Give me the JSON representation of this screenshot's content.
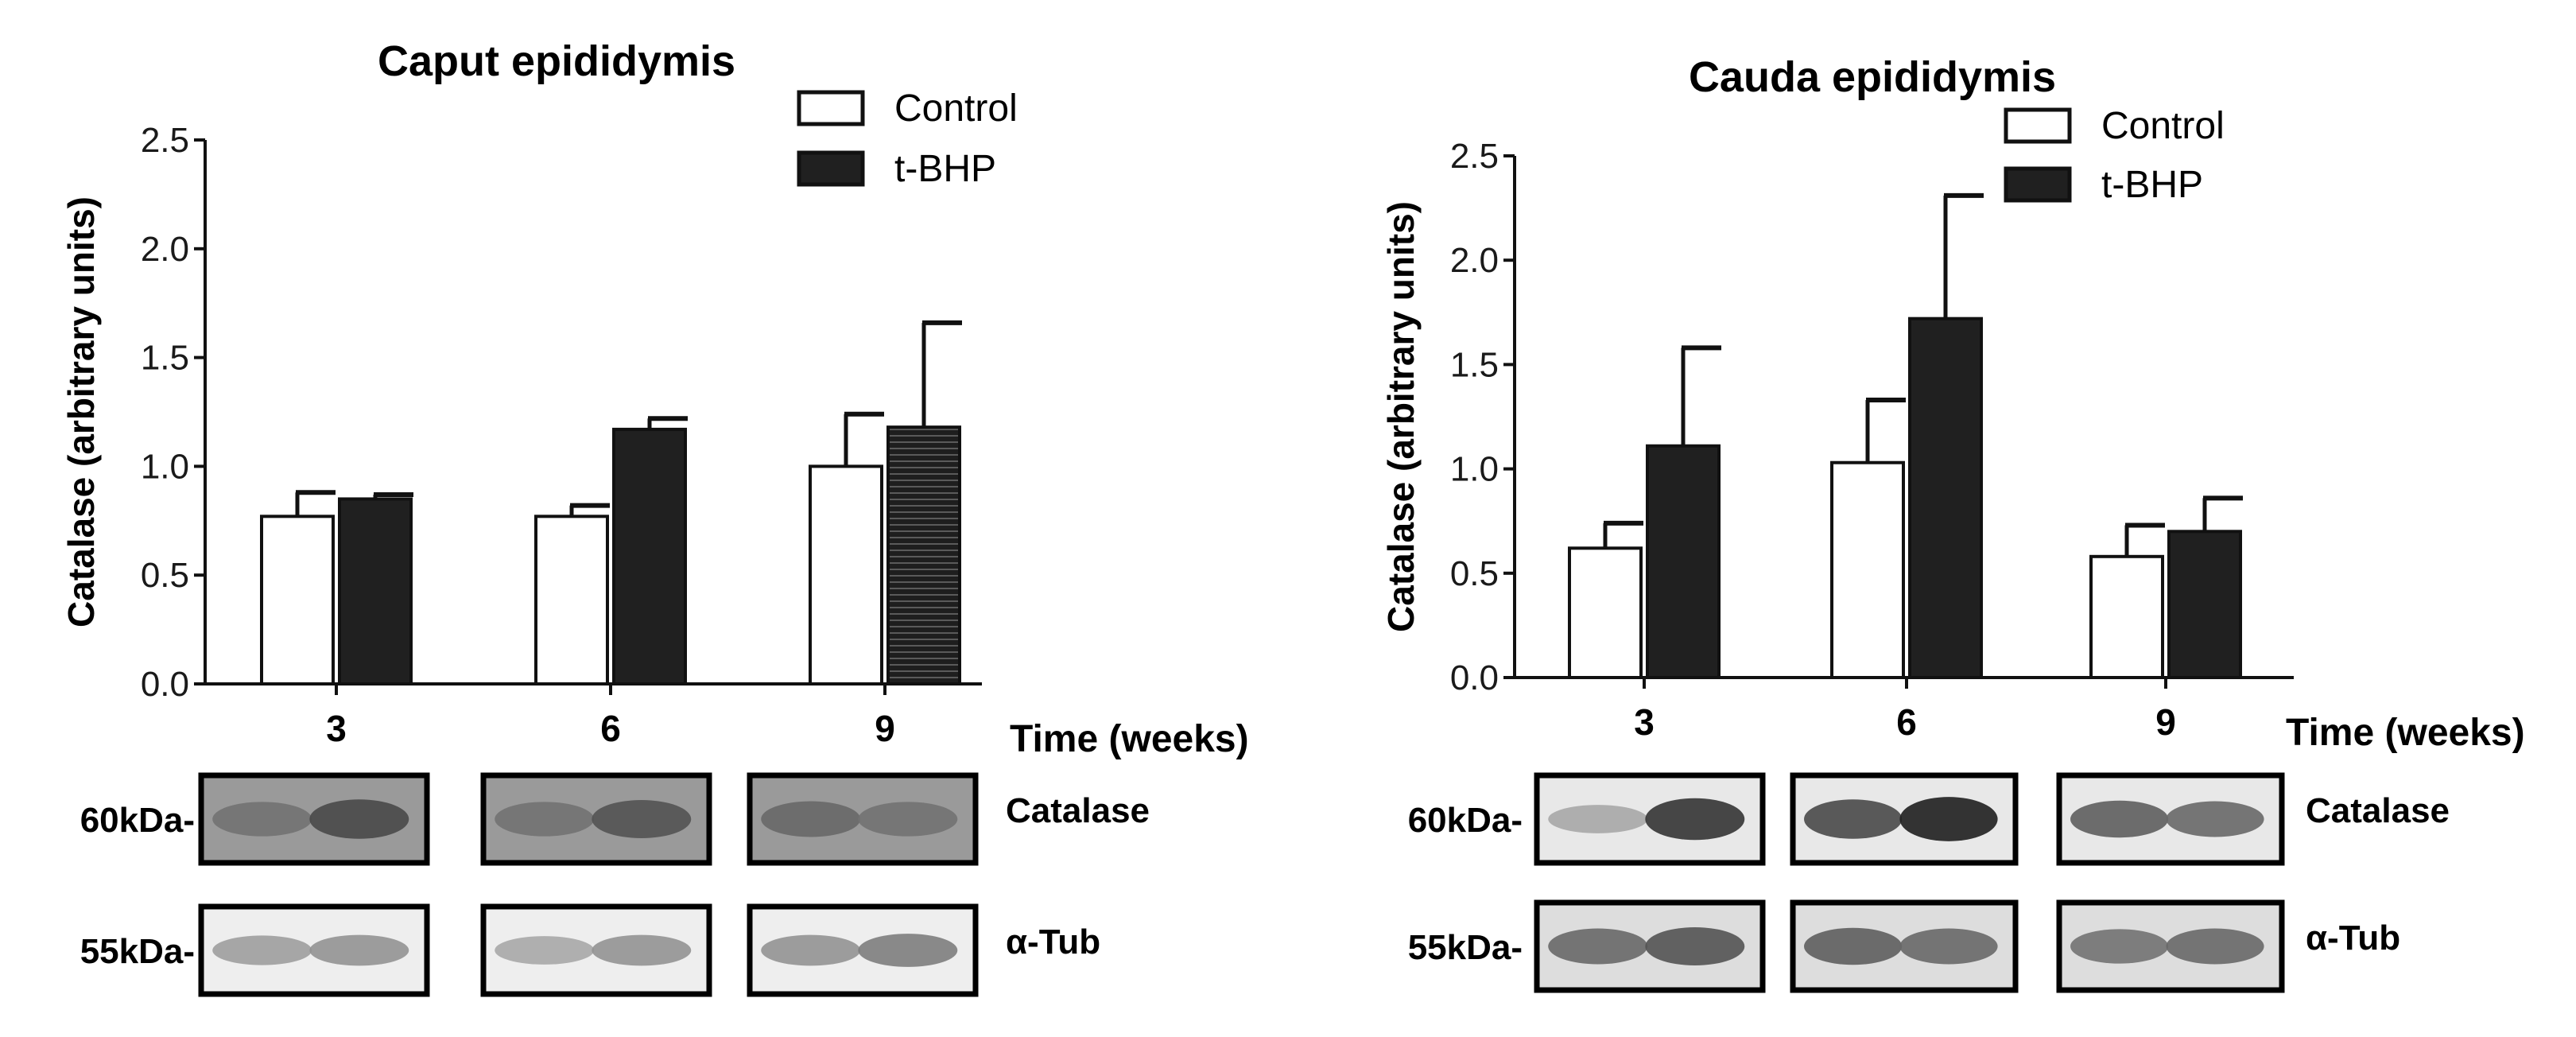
{
  "chart_data": [
    {
      "type": "bar",
      "title": "Caput epididymis",
      "xlabel": "Time (weeks)",
      "ylabel": "Catalase (arbitrary units)",
      "ylim": [
        0,
        2.5
      ],
      "yticks": [
        "0.0",
        "0.5",
        "1.0",
        "1.5",
        "2.0",
        "2.5"
      ],
      "categories": [
        "3",
        "6",
        "9"
      ],
      "series": [
        {
          "name": "Control",
          "values": [
            0.77,
            0.77,
            1.0
          ],
          "errors": [
            0.11,
            0.05,
            0.24
          ],
          "fill": "#ffffff"
        },
        {
          "name": "t-BHP",
          "values": [
            0.85,
            1.17,
            1.18
          ],
          "errors": [
            0.02,
            0.05,
            0.48
          ],
          "fill": "#202020"
        }
      ],
      "legend_position": "top-right",
      "blots": [
        {
          "kda": "60kDa-",
          "protein": "Catalase",
          "intensity": [
            [
              0.55,
              0.75
            ],
            [
              0.55,
              0.7
            ],
            [
              0.6,
              0.55
            ]
          ],
          "bg": "#9a9a9a"
        },
        {
          "kda": "55kDa-",
          "protein": "α-Tub",
          "intensity": [
            [
              0.35,
              0.4
            ],
            [
              0.3,
              0.4
            ],
            [
              0.4,
              0.5
            ]
          ],
          "bg": "#eeeeee"
        }
      ]
    },
    {
      "type": "bar",
      "title": "Cauda epididymis",
      "xlabel": "Time (weeks)",
      "ylabel": "Catalase (arbitrary units)",
      "ylim": [
        0,
        2.5
      ],
      "yticks": [
        "0.0",
        "0.5",
        "1.0",
        "1.5",
        "2.0",
        "2.5"
      ],
      "categories": [
        "3",
        "6",
        "9"
      ],
      "series": [
        {
          "name": "Control",
          "values": [
            0.62,
            1.03,
            0.58
          ],
          "errors": [
            0.12,
            0.3,
            0.15
          ],
          "fill": "#ffffff"
        },
        {
          "name": "t-BHP",
          "values": [
            1.11,
            1.72,
            0.7
          ],
          "errors": [
            0.47,
            0.59,
            0.16
          ],
          "fill": "#202020"
        }
      ],
      "legend_position": "top-right",
      "blots": [
        {
          "kda": "60kDa-",
          "protein": "Catalase",
          "intensity": [
            [
              0.3,
              0.85
            ],
            [
              0.75,
              0.95
            ],
            [
              0.65,
              0.6
            ]
          ],
          "bg": "#e8e8e8"
        },
        {
          "kda": "55kDa-",
          "protein": "α-Tub",
          "intensity": [
            [
              0.6,
              0.7
            ],
            [
              0.65,
              0.6
            ],
            [
              0.55,
              0.6
            ]
          ],
          "bg": "#dddddd"
        }
      ]
    }
  ]
}
